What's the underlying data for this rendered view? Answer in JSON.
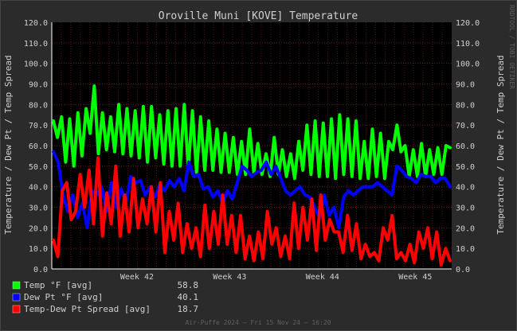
{
  "chart_data": {
    "type": "line",
    "title": "Oroville Muni [KOVE] Temperature",
    "ylabel": "Temperature / Dew Pt / Temp Spread",
    "ylim": [
      0,
      120
    ],
    "y_ticks": [
      "0.0",
      "10.0",
      "20.0",
      "30.0",
      "40.0",
      "50.0",
      "60.0",
      "70.0",
      "80.0",
      "90.0",
      "100.0",
      "110.0",
      "120.0"
    ],
    "x_ticks": [
      "Week 42",
      "Week 43",
      "Week 44",
      "Week 45"
    ],
    "grid": true,
    "legend_position": "bottom-left",
    "colors": {
      "background": "#2b2b2b",
      "plot_bg": "#000000",
      "text": "#cfcfcf",
      "grid": "#6e1a1a",
      "temp": "#00ff00",
      "dew": "#0000ff",
      "spread": "#ff0000"
    },
    "series": [
      {
        "name": "Temp °F [avg]",
        "current": "58.8",
        "values": [
          72,
          64,
          74,
          52,
          73,
          50,
          76,
          55,
          78,
          66,
          89,
          56,
          76,
          58,
          74,
          57,
          80,
          56,
          78,
          55,
          77,
          54,
          79,
          52,
          79,
          54,
          75,
          51,
          77,
          50,
          78,
          50,
          80,
          49,
          77,
          47,
          74,
          48,
          72,
          48,
          68,
          47,
          66,
          47,
          64,
          46,
          62,
          46,
          68,
          47,
          61,
          46,
          56,
          45,
          64,
          46,
          58,
          45,
          56,
          44,
          62,
          48,
          70,
          46,
          72,
          45,
          71,
          45,
          73,
          44,
          75,
          46,
          73,
          45,
          72,
          44,
          62,
          44,
          68,
          45,
          66,
          44,
          62,
          58,
          70,
          57,
          60,
          45,
          58,
          45,
          61,
          45,
          58,
          46,
          59,
          46,
          60,
          59
        ]
      },
      {
        "name": "Dew Pt °F [avg]",
        "current": "40.1",
        "values": [
          57,
          52,
          36,
          28,
          36,
          25,
          32,
          20,
          38,
          36,
          40,
          28,
          42,
          30,
          39,
          32,
          45,
          42,
          43,
          36,
          40,
          35,
          41,
          38,
          43,
          40,
          44,
          38,
          52,
          45,
          46,
          39,
          40,
          35,
          38,
          32,
          38,
          34,
          42,
          50,
          48,
          45,
          47,
          48,
          52,
          46,
          50,
          44,
          38,
          36,
          38,
          40,
          36,
          35,
          30,
          25,
          36,
          26,
          30,
          20,
          35,
          38,
          36,
          38,
          40,
          40,
          40,
          42,
          40,
          38,
          36,
          50,
          48,
          45,
          44,
          42,
          46,
          45,
          45,
          42,
          44,
          44,
          40
        ]
      },
      {
        "name": "Temp-Dew Pt Spread [avg]",
        "current": "18.7",
        "values": [
          14,
          6,
          38,
          42,
          24,
          28,
          46,
          30,
          48,
          22,
          54,
          16,
          37,
          22,
          50,
          16,
          36,
          18,
          44,
          20,
          34,
          22,
          40,
          18,
          42,
          8,
          28,
          14,
          32,
          8,
          22,
          10,
          20,
          6,
          31,
          10,
          28,
          12,
          36,
          12,
          26,
          8,
          26,
          5,
          16,
          4,
          18,
          5,
          28,
          12,
          20,
          6,
          16,
          5,
          32,
          10,
          30,
          14,
          34,
          9,
          36,
          14,
          24,
          18,
          18,
          8,
          26,
          9,
          22,
          5,
          12,
          6,
          8,
          4,
          20,
          14,
          26,
          5,
          8,
          4,
          12,
          3,
          18,
          10,
          20,
          5,
          18,
          2,
          10,
          4
        ]
      }
    ]
  },
  "footer": "Air-Puffe 2024 – Fri 15 Nov 24 – 16:20",
  "side_text": "RRDTOOL / TOBI OETIKER"
}
